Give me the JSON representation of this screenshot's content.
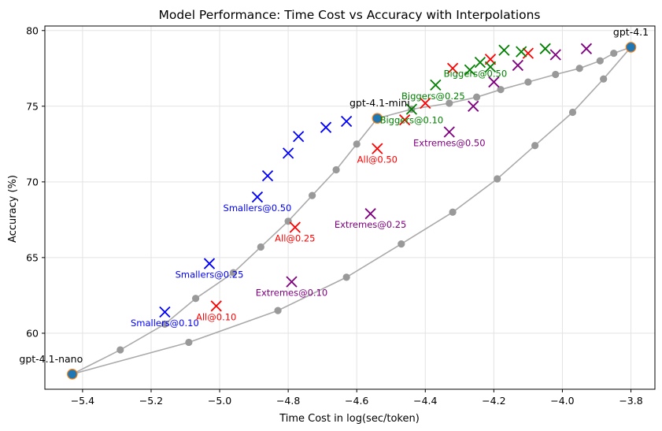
{
  "chart_data": {
    "type": "scatter",
    "title": "Model Performance: Time Cost vs Accuracy with Interpolations",
    "xlabel": "Time Cost in log(sec/token)",
    "ylabel": "Accuracy (%)",
    "xlim": [
      -5.51,
      -3.73
    ],
    "ylim": [
      56.3,
      80.3
    ],
    "xticks": [
      -5.4,
      -5.2,
      -5.0,
      -4.8,
      -4.6,
      -4.4,
      -4.2,
      -4.0,
      -3.8
    ],
    "xtick_labels": [
      "−5.4",
      "−5.2",
      "−5.0",
      "−4.8",
      "−4.6",
      "−4.4",
      "−4.2",
      "−4.0",
      "−3.8"
    ],
    "yticks": [
      60,
      65,
      70,
      75,
      80
    ],
    "ytick_labels": [
      "60",
      "65",
      "70",
      "75",
      "80"
    ],
    "grid": true,
    "colors": {
      "curve": "#aaaaaa",
      "curve_point": "#999999",
      "model": "#1f77b4",
      "model_edge": "#ff7f0e",
      "smallers": "#0000ff",
      "all": "#ff0000",
      "biggers": "#008000",
      "extremes": "#800080"
    },
    "models": [
      {
        "label": "gpt-4.1-nano",
        "x": -5.43,
        "y": 57.3
      },
      {
        "label": "gpt-4.1-mini",
        "x": -4.54,
        "y": 74.2
      },
      {
        "label": "gpt-4.1",
        "x": -3.8,
        "y": 78.9
      }
    ],
    "curves": [
      {
        "points": [
          [
            -5.43,
            57.3
          ],
          [
            -5.29,
            58.9
          ],
          [
            -5.16,
            60.6
          ],
          [
            -5.07,
            62.3
          ],
          [
            -4.96,
            64.0
          ],
          [
            -4.88,
            65.7
          ],
          [
            -4.8,
            67.4
          ],
          [
            -4.73,
            69.1
          ],
          [
            -4.66,
            70.8
          ],
          [
            -4.6,
            72.5
          ],
          [
            -4.54,
            74.2
          ],
          [
            -4.44,
            74.8
          ],
          [
            -4.33,
            75.2
          ],
          [
            -4.25,
            75.6
          ],
          [
            -4.18,
            76.1
          ],
          [
            -4.1,
            76.6
          ],
          [
            -4.02,
            77.1
          ],
          [
            -3.95,
            77.5
          ],
          [
            -3.89,
            78.0
          ],
          [
            -3.85,
            78.5
          ],
          [
            -3.8,
            78.9
          ]
        ]
      },
      {
        "points": [
          [
            -5.43,
            57.3
          ],
          [
            -5.09,
            59.4
          ],
          [
            -4.83,
            61.5
          ],
          [
            -4.63,
            63.7
          ],
          [
            -4.47,
            65.9
          ],
          [
            -4.32,
            68.0
          ],
          [
            -4.19,
            70.2
          ],
          [
            -4.08,
            72.4
          ],
          [
            -3.97,
            74.6
          ],
          [
            -3.88,
            76.8
          ],
          [
            -3.8,
            78.9
          ]
        ]
      }
    ],
    "series": [
      {
        "group": "smallers",
        "points": [
          {
            "x": -5.16,
            "y": 61.4,
            "label": "Smallers@0.10"
          },
          {
            "x": -5.03,
            "y": 64.6,
            "label": "Smallers@0.25"
          },
          {
            "x": -4.89,
            "y": 69.0,
            "label": "Smallers@0.50"
          },
          {
            "x": -4.86,
            "y": 70.4,
            "label": ""
          },
          {
            "x": -4.8,
            "y": 71.9,
            "label": ""
          },
          {
            "x": -4.77,
            "y": 73.0,
            "label": ""
          },
          {
            "x": -4.69,
            "y": 73.6,
            "label": ""
          },
          {
            "x": -4.63,
            "y": 74.0,
            "label": ""
          }
        ]
      },
      {
        "group": "all",
        "points": [
          {
            "x": -5.01,
            "y": 61.8,
            "label": "All@0.10"
          },
          {
            "x": -4.78,
            "y": 67.0,
            "label": "All@0.25"
          },
          {
            "x": -4.54,
            "y": 72.2,
            "label": "All@0.50"
          },
          {
            "x": -4.46,
            "y": 74.1,
            "label": ""
          },
          {
            "x": -4.4,
            "y": 75.2,
            "label": ""
          },
          {
            "x": -4.32,
            "y": 77.5,
            "label": ""
          },
          {
            "x": -4.21,
            "y": 78.1,
            "label": ""
          },
          {
            "x": -4.1,
            "y": 78.5,
            "label": ""
          }
        ]
      },
      {
        "group": "biggers",
        "points": [
          {
            "x": -4.44,
            "y": 74.8,
            "label": "Biggers@0.10"
          },
          {
            "x": -4.37,
            "y": 76.4,
            "label": "Biggers@0.25"
          },
          {
            "x": -4.27,
            "y": 77.4,
            "label": "Biggers@0.50"
          },
          {
            "x": -4.24,
            "y": 77.9,
            "label": ""
          },
          {
            "x": -4.21,
            "y": 77.6,
            "label": ""
          },
          {
            "x": -4.17,
            "y": 78.7,
            "label": ""
          },
          {
            "x": -4.12,
            "y": 78.6,
            "label": ""
          },
          {
            "x": -4.05,
            "y": 78.8,
            "label": ""
          }
        ]
      },
      {
        "group": "extremes",
        "points": [
          {
            "x": -4.79,
            "y": 63.4,
            "label": "Extremes@0.10"
          },
          {
            "x": -4.56,
            "y": 67.9,
            "label": "Extremes@0.25"
          },
          {
            "x": -4.33,
            "y": 73.3,
            "label": "Extremes@0.50"
          },
          {
            "x": -4.26,
            "y": 75.0,
            "label": ""
          },
          {
            "x": -4.2,
            "y": 76.6,
            "label": ""
          },
          {
            "x": -4.13,
            "y": 77.7,
            "label": ""
          },
          {
            "x": -4.02,
            "y": 78.4,
            "label": ""
          },
          {
            "x": -3.93,
            "y": 78.8,
            "label": ""
          }
        ]
      }
    ]
  }
}
